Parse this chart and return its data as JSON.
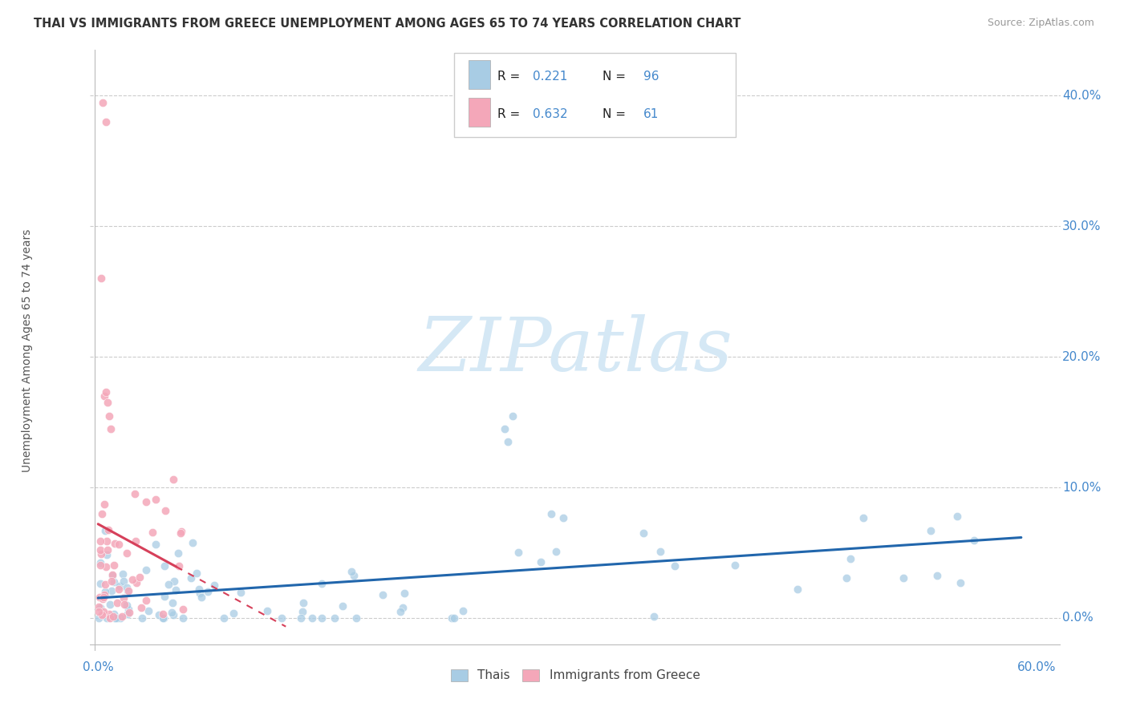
{
  "title": "THAI VS IMMIGRANTS FROM GREECE UNEMPLOYMENT AMONG AGES 65 TO 74 YEARS CORRELATION CHART",
  "source": "Source: ZipAtlas.com",
  "ylabel": "Unemployment Among Ages 65 to 74 years",
  "yticks_labels": [
    "0.0%",
    "10.0%",
    "20.0%",
    "30.0%",
    "40.0%"
  ],
  "ytick_vals": [
    0.0,
    0.1,
    0.2,
    0.3,
    0.4
  ],
  "xlim": [
    -0.005,
    0.615
  ],
  "ylim": [
    -0.025,
    0.435
  ],
  "legend_label1": "Thais",
  "legend_label2": "Immigrants from Greece",
  "R1": 0.221,
  "N1": 96,
  "R2": 0.632,
  "N2": 61,
  "blue_dot_color": "#a8cce4",
  "pink_dot_color": "#f4a7b9",
  "blue_line_color": "#2166ac",
  "pink_line_color": "#d6405a",
  "grid_color": "#cccccc",
  "title_color": "#333333",
  "tick_label_color": "#4488cc",
  "source_color": "#999999",
  "watermark_color": "#d5e8f5",
  "watermark_text": "ZIPatlas"
}
